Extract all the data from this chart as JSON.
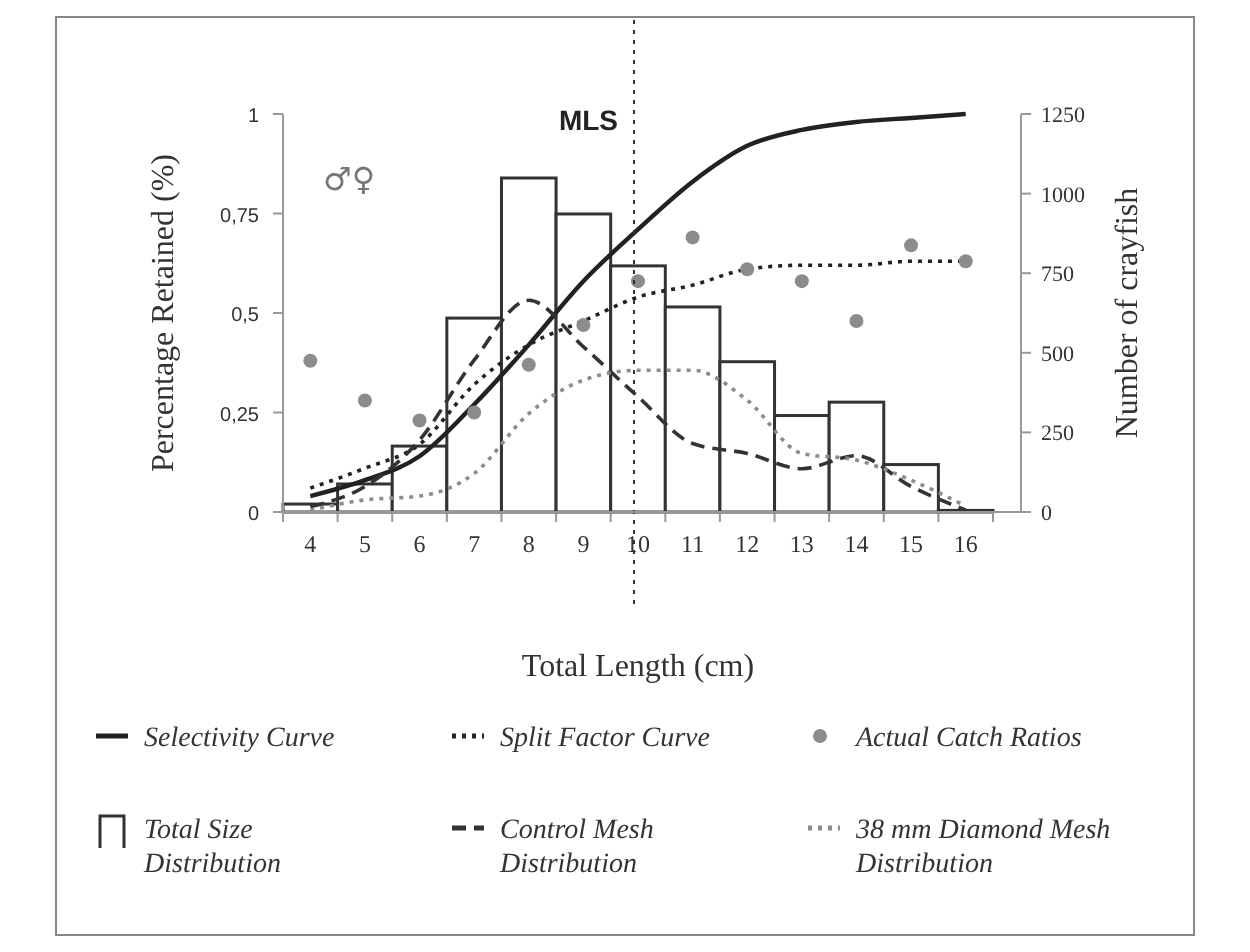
{
  "chart_data": {
    "type": "bar",
    "xlabel": "Total Length (cm)",
    "ylabel": "Percentage Retained (%)",
    "y2label": "Number of crayfish",
    "categories": [
      "4",
      "5",
      "6",
      "7",
      "8",
      "9",
      "10",
      "11",
      "12",
      "13",
      "14",
      "15",
      "16"
    ],
    "ylim": [
      0,
      1
    ],
    "yticks": [
      0,
      {
        "value": 0.25,
        "label": "0,25"
      },
      {
        "value": 0.5,
        "label": "0,5"
      },
      {
        "value": 0.75,
        "label": "0,75"
      },
      1
    ],
    "y2lim": [
      0,
      1250
    ],
    "y2ticks": [
      0,
      250,
      500,
      750,
      1000,
      1250
    ],
    "legend": "bottom",
    "series": [
      {
        "name": "Selectivity Curve",
        "type": "line",
        "color": "#222222",
        "line_style": "solid",
        "values": [
          0.04,
          0.08,
          0.14,
          0.27,
          0.42,
          0.58,
          0.71,
          0.83,
          0.92,
          0.96,
          0.98,
          0.99,
          1.0
        ]
      },
      {
        "name": "Split Factor Curve",
        "type": "line",
        "color": "#222222",
        "line_style": "dotted",
        "values": [
          0.06,
          0.11,
          0.17,
          0.32,
          0.42,
          0.48,
          0.54,
          0.57,
          0.61,
          0.62,
          0.62,
          0.63,
          0.63
        ]
      },
      {
        "name": "Actual Catch Ratios",
        "type": "scatter",
        "marker": "circle",
        "color": "#8c8c8c",
        "values": [
          0.38,
          0.28,
          0.23,
          0.25,
          0.37,
          0.47,
          0.58,
          0.69,
          0.61,
          0.58,
          0.48,
          0.67,
          0.63
        ]
      },
      {
        "name": "Total Size Distribution",
        "axis": "y2",
        "color": "#ffffff",
        "values": [
          25,
          88,
          207,
          609,
          1049,
          936,
          773,
          644,
          472,
          303,
          345,
          149,
          5
        ]
      },
      {
        "name": "Control Mesh Distribution",
        "type": "line",
        "axis": "y2",
        "color": "#333333",
        "line_style": "dashed",
        "values": [
          17,
          80,
          226,
          477,
          665,
          519,
          362,
          215,
          184,
          136,
          177,
          80,
          6
        ]
      },
      {
        "name": "38 mm Diamond Mesh Distribution",
        "type": "line",
        "axis": "y2",
        "color": "#8c8c8c",
        "line_style": "dotted",
        "values": [
          6,
          38,
          50,
          121,
          309,
          414,
          445,
          445,
          351,
          184,
          163,
          100,
          19
        ]
      }
    ],
    "ref_lines": [
      {
        "axis": "x",
        "value": "10",
        "label": "MLS",
        "line_style": "dotted",
        "color": "#333333"
      }
    ],
    "annotations": [
      "♂♀"
    ]
  }
}
